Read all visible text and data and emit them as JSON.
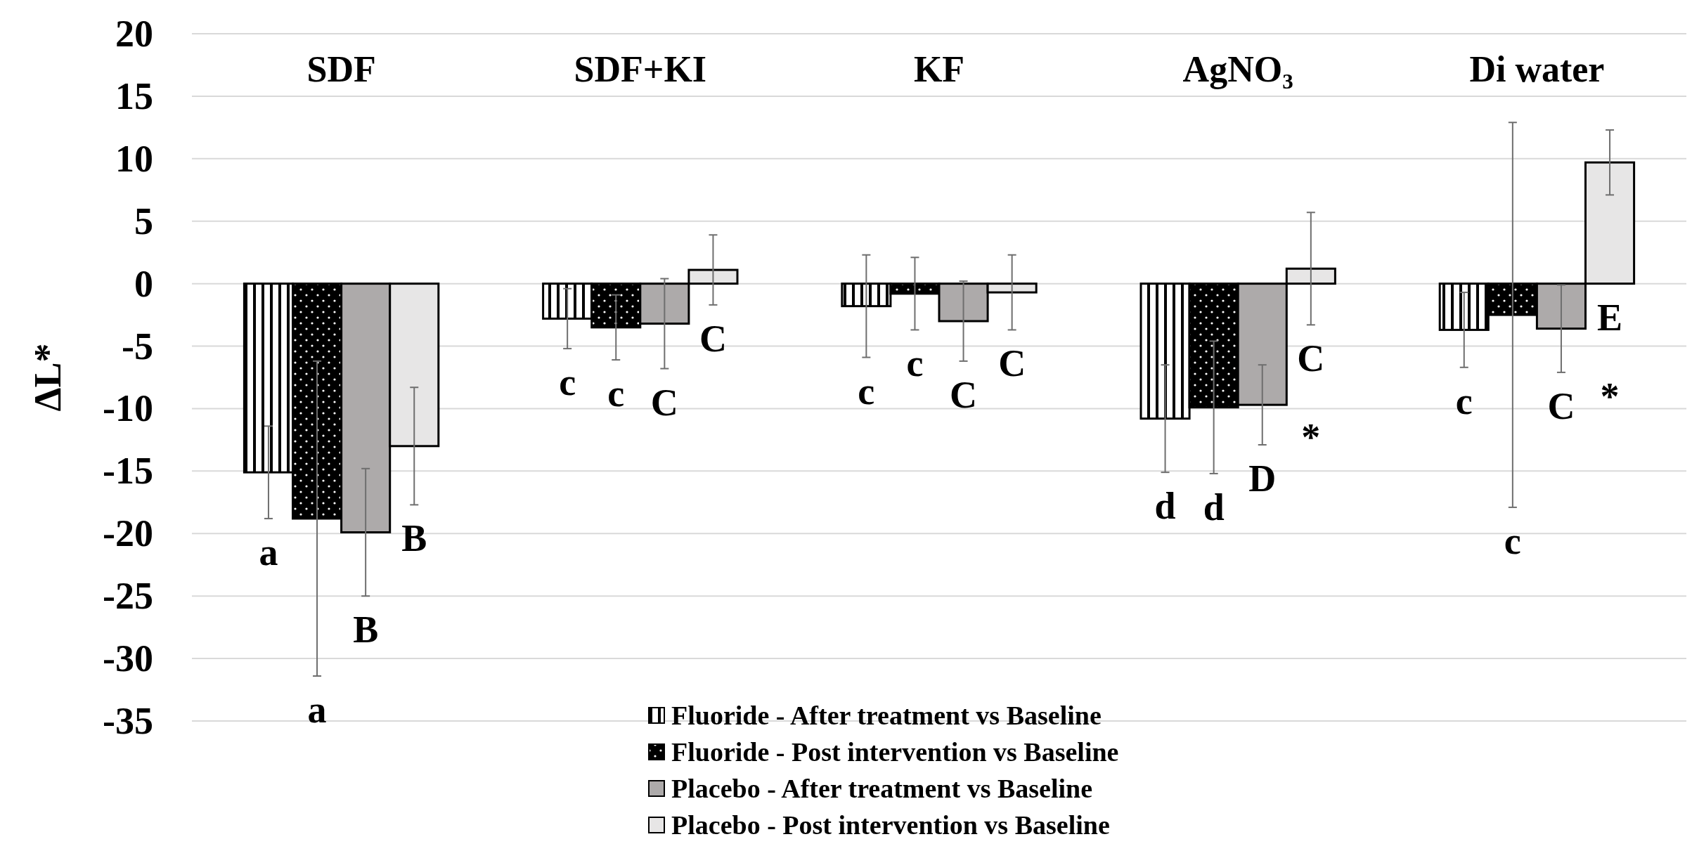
{
  "chart_data": {
    "type": "bar",
    "ylabel": "ΔL*",
    "categories": [
      "SDF",
      "SDF+KI",
      "KF",
      "AgNO₃",
      "Di water"
    ],
    "series": [
      {
        "name": "Fluoride - After treatment vs Baseline",
        "color": "#000000",
        "values": [
          -15.1,
          -2.8,
          -1.8,
          -10.8,
          -3.7
        ],
        "errors": [
          3.7,
          2.4,
          4.1,
          4.3,
          3.0
        ]
      },
      {
        "name": "Fluoride - Post intervention vs Baseline",
        "color": "#000000",
        "values": [
          -18.8,
          -3.5,
          -0.8,
          -9.9,
          -2.5
        ],
        "errors": [
          12.6,
          2.6,
          2.9,
          5.3,
          15.4
        ]
      },
      {
        "name": "Placebo - After treatment vs Baseline",
        "color": "#adaaaa",
        "values": [
          -19.9,
          -3.2,
          -3.0,
          -9.7,
          -3.6
        ],
        "errors": [
          5.1,
          3.6,
          3.2,
          3.2,
          3.5
        ]
      },
      {
        "name": "Placebo - Post intervention vs Baseline",
        "color": "#e7e6e6",
        "values": [
          -13.0,
          1.1,
          -0.7,
          1.2,
          9.7
        ],
        "errors": [
          4.7,
          2.8,
          3.0,
          4.5,
          2.6
        ]
      }
    ],
    "ylim": [
      -35,
      20
    ],
    "yticks": [
      -35,
      -30,
      -25,
      -20,
      -15,
      -10,
      -5,
      0,
      5,
      10,
      15,
      20
    ],
    "grid": "y",
    "legend": "bottom",
    "annotations": [
      "a",
      "a",
      "B",
      "B",
      "c",
      "c",
      "C",
      "C",
      "c",
      "c",
      "C",
      "C",
      "d",
      "d",
      "D",
      "C",
      "*",
      "c",
      "c",
      "C",
      "E",
      "*"
    ]
  }
}
